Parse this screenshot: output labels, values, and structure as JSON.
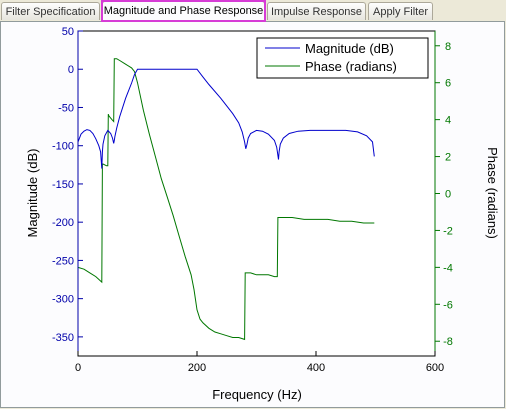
{
  "tabs": [
    {
      "label": "Filter Specification",
      "active": false
    },
    {
      "label": "Magnitude and Phase Response",
      "active": true
    },
    {
      "label": "Impulse Response",
      "active": false
    },
    {
      "label": "Apply Filter",
      "active": false
    }
  ],
  "chart_data": {
    "type": "line",
    "xlabel": "Frequency (Hz)",
    "ylabel": "Magnitude (dB)",
    "y2label": "Phase (radians)",
    "xlim": [
      0,
      600
    ],
    "ylim": [
      -375,
      50
    ],
    "y2lim": [
      -8.8,
      8.8
    ],
    "xticks": [
      0,
      200,
      400,
      600
    ],
    "yticks": [
      50,
      0,
      -50,
      -100,
      -150,
      -200,
      -250,
      -300,
      -350
    ],
    "y2ticks": [
      8,
      6,
      4,
      2,
      0,
      -2,
      -4,
      -6,
      -8
    ],
    "grid": false,
    "legend": "top-right",
    "colors": {
      "magnitude": "#0000cc",
      "phase": "#007700",
      "left_axis": "#0000aa",
      "right_axis": "#007700"
    },
    "series": [
      {
        "name": "Magnitude (dB)",
        "axis": "left",
        "x": [
          0,
          5,
          10,
          15,
          20,
          25,
          30,
          35,
          38,
          40,
          41,
          42,
          45,
          50,
          55,
          58,
          60,
          61,
          62,
          65,
          70,
          80,
          90,
          95,
          100,
          110,
          120,
          150,
          180,
          200,
          210,
          220,
          240,
          260,
          270,
          276,
          280,
          282,
          284,
          286,
          290,
          300,
          310,
          320,
          330,
          334,
          337,
          338,
          340,
          345,
          355,
          370,
          390,
          420,
          450,
          470,
          485,
          495,
          498
        ],
        "y": [
          -95,
          -85,
          -81,
          -79,
          -80,
          -84,
          -91,
          -100,
          -108,
          -130,
          -108,
          -98,
          -87,
          -80,
          -84,
          -90,
          -97,
          -93,
          -88,
          -77,
          -62,
          -38,
          -18,
          -7,
          0,
          0,
          0,
          0,
          0,
          0,
          -10,
          -20,
          -38,
          -58,
          -70,
          -82,
          -95,
          -104,
          -98,
          -90,
          -84,
          -80,
          -81,
          -85,
          -93,
          -102,
          -118,
          -108,
          -98,
          -90,
          -84,
          -81,
          -80,
          -80,
          -80,
          -82,
          -87,
          -95,
          -114
        ]
      },
      {
        "name": "Phase (radians)",
        "axis": "right",
        "x": [
          0,
          10,
          20,
          30,
          40,
          41,
          42,
          48,
          50,
          51,
          52,
          57,
          60,
          61,
          62,
          65,
          70,
          80,
          90,
          95,
          100,
          110,
          120,
          130,
          140,
          150,
          160,
          170,
          180,
          190,
          195,
          200,
          205,
          210,
          220,
          230,
          240,
          250,
          260,
          270,
          280,
          281,
          282,
          285,
          290,
          300,
          310,
          320,
          330,
          335,
          336,
          337,
          340,
          360,
          380,
          400,
          420,
          440,
          460,
          480,
          495,
          498
        ],
        "y": [
          -4.0,
          -4.1,
          -4.3,
          -4.5,
          -4.8,
          1.6,
          1.6,
          1.5,
          1.5,
          4.3,
          4.2,
          4.0,
          3.9,
          7.3,
          7.3,
          7.3,
          7.2,
          7.0,
          6.8,
          6.6,
          6.0,
          4.5,
          3.2,
          2.0,
          0.8,
          -0.2,
          -1.2,
          -2.3,
          -3.4,
          -4.4,
          -5.2,
          -6.3,
          -6.8,
          -7.0,
          -7.3,
          -7.5,
          -7.6,
          -7.7,
          -7.8,
          -7.8,
          -7.9,
          -4.3,
          -4.3,
          -4.3,
          -4.3,
          -4.4,
          -4.4,
          -4.4,
          -4.5,
          -4.5,
          -1.3,
          -1.3,
          -1.3,
          -1.3,
          -1.4,
          -1.4,
          -1.4,
          -1.5,
          -1.5,
          -1.6,
          -1.6,
          -1.6
        ]
      }
    ]
  }
}
